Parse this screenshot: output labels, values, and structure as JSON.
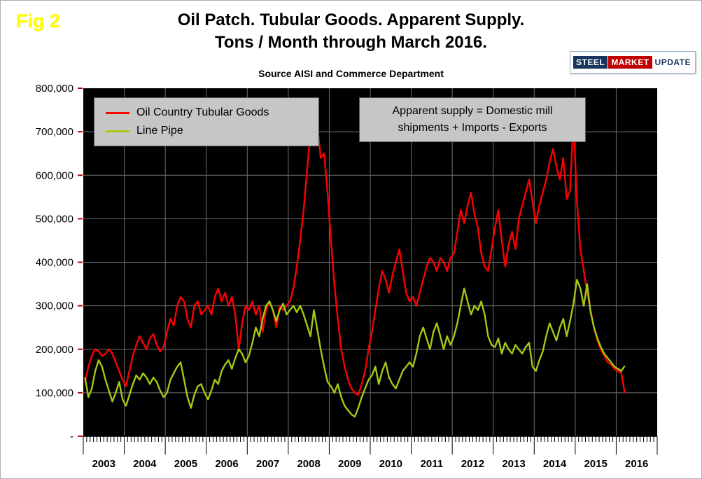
{
  "figure_label": "Fig 2",
  "header": {
    "title_line1": "Oil Patch. Tubular Goods. Apparent Supply.",
    "title_line2": "Tons / Month through March 2016.",
    "source": "Source AISI and Commerce Department"
  },
  "logo": {
    "part1": "STEEL",
    "part2": "MARKET",
    "part3": "UPDATE"
  },
  "legend": {
    "items": [
      {
        "label": "Oil Country Tubular Goods",
        "color": "#ff0000"
      },
      {
        "label": "Line Pipe",
        "color": "#a3c916"
      }
    ]
  },
  "annotation": {
    "line1": "Apparent supply = Domestic mill",
    "line2": "shipments + Imports - Exports"
  },
  "axes": {
    "y_tick_labels": [
      "800,000",
      "700,000",
      "600,000",
      "500,000",
      "400,000",
      "300,000",
      "200,000",
      "100,000",
      "-"
    ],
    "x_year_labels": [
      "2003",
      "2004",
      "2005",
      "2006",
      "2007",
      "2008",
      "2009",
      "2010",
      "2011",
      "2012",
      "2013",
      "2014",
      "2015",
      "2016"
    ]
  },
  "chart_data": {
    "type": "line",
    "title": "Oil Patch. Tubular Goods. Apparent Supply. Tons / Month through March 2016.",
    "subtitle": "Source AISI and Commerce Department",
    "x_unit": "month",
    "x_start": "2003-01",
    "x_end": "2016-03",
    "x_axis_span_months": 168,
    "ylim": [
      0,
      800000
    ],
    "y_tick_interval": 100000,
    "grid": true,
    "plot_background": "#000000",
    "legend_position": "top-left-inside",
    "series": [
      {
        "name": "Oil Country Tubular Goods",
        "color": "#ff0000",
        "values": [
          125000,
          160000,
          185000,
          200000,
          195000,
          185000,
          190000,
          200000,
          190000,
          170000,
          150000,
          130000,
          115000,
          150000,
          185000,
          210000,
          230000,
          215000,
          200000,
          225000,
          235000,
          210000,
          195000,
          205000,
          240000,
          270000,
          255000,
          300000,
          320000,
          310000,
          270000,
          250000,
          300000,
          310000,
          280000,
          290000,
          300000,
          280000,
          320000,
          340000,
          310000,
          330000,
          300000,
          320000,
          280000,
          200000,
          260000,
          300000,
          290000,
          310000,
          280000,
          300000,
          240000,
          290000,
          310000,
          290000,
          250000,
          300000,
          290000,
          300000,
          310000,
          340000,
          390000,
          450000,
          520000,
          610000,
          700000,
          735000,
          720000,
          640000,
          650000,
          560000,
          450000,
          350000,
          270000,
          200000,
          160000,
          130000,
          110000,
          100000,
          95000,
          120000,
          150000,
          200000,
          240000,
          290000,
          340000,
          380000,
          360000,
          330000,
          370000,
          400000,
          430000,
          380000,
          330000,
          310000,
          320000,
          300000,
          330000,
          360000,
          390000,
          410000,
          400000,
          380000,
          410000,
          400000,
          380000,
          410000,
          420000,
          470000,
          520000,
          490000,
          530000,
          560000,
          510000,
          480000,
          420000,
          390000,
          380000,
          430000,
          480000,
          520000,
          450000,
          390000,
          440000,
          470000,
          430000,
          500000,
          530000,
          560000,
          590000,
          540000,
          490000,
          530000,
          560000,
          590000,
          630000,
          660000,
          620000,
          590000,
          640000,
          545000,
          565000,
          730000,
          540000,
          430000,
          380000,
          330000,
          290000,
          250000,
          220000,
          200000,
          185000,
          170000,
          165000,
          155000,
          150000,
          145000,
          100000
        ]
      },
      {
        "name": "Line Pipe",
        "color": "#a3c916",
        "values": [
          135000,
          90000,
          110000,
          150000,
          175000,
          160000,
          130000,
          105000,
          80000,
          100000,
          125000,
          85000,
          70000,
          95000,
          120000,
          140000,
          130000,
          145000,
          135000,
          120000,
          135000,
          125000,
          105000,
          90000,
          100000,
          130000,
          145000,
          160000,
          170000,
          130000,
          90000,
          65000,
          95000,
          115000,
          120000,
          100000,
          85000,
          105000,
          130000,
          120000,
          150000,
          165000,
          175000,
          155000,
          180000,
          200000,
          190000,
          170000,
          185000,
          215000,
          250000,
          230000,
          270000,
          300000,
          310000,
          290000,
          265000,
          290000,
          305000,
          280000,
          290000,
          300000,
          285000,
          300000,
          280000,
          255000,
          230000,
          290000,
          245000,
          200000,
          160000,
          125000,
          115000,
          100000,
          120000,
          90000,
          70000,
          60000,
          50000,
          45000,
          65000,
          90000,
          110000,
          130000,
          140000,
          160000,
          120000,
          150000,
          170000,
          135000,
          120000,
          110000,
          130000,
          150000,
          160000,
          170000,
          160000,
          190000,
          230000,
          250000,
          225000,
          200000,
          240000,
          260000,
          230000,
          200000,
          230000,
          210000,
          230000,
          260000,
          300000,
          340000,
          310000,
          280000,
          300000,
          290000,
          310000,
          280000,
          230000,
          210000,
          205000,
          225000,
          190000,
          215000,
          200000,
          190000,
          210000,
          200000,
          190000,
          205000,
          215000,
          160000,
          150000,
          175000,
          195000,
          230000,
          260000,
          240000,
          220000,
          250000,
          270000,
          230000,
          265000,
          305000,
          360000,
          340000,
          300000,
          350000,
          285000,
          250000,
          225000,
          205000,
          190000,
          180000,
          170000,
          160000,
          155000,
          150000,
          162000
        ]
      }
    ]
  }
}
